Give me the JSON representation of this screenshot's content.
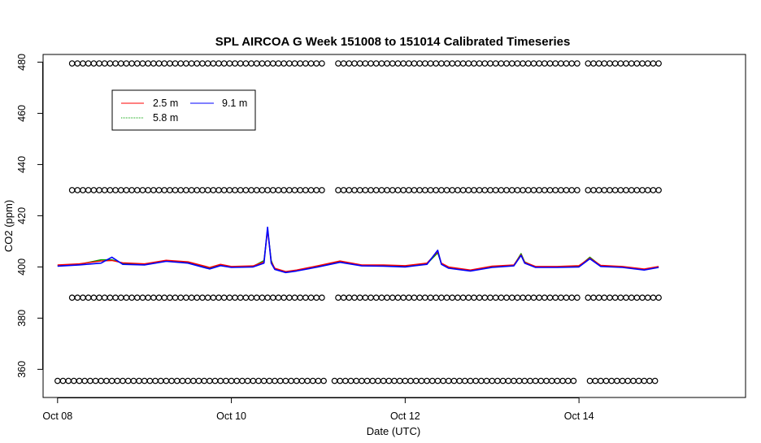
{
  "chart_data": {
    "type": "line",
    "title": "SPL AIRCOA G  Week 151008 to 151014  Calibrated Timeseries",
    "xlabel": "Date (UTC)",
    "ylabel": "CO2 (ppm)",
    "x_tick_labels": [
      "Oct 08",
      "Oct 10",
      "Oct 12",
      "Oct 14"
    ],
    "x_tick_dates": [
      "2015-10-08",
      "2015-10-10",
      "2015-10-12",
      "2015-10-14"
    ],
    "xlim": [
      "2015-10-07T20:00",
      "2015-10-15T22:00"
    ],
    "y_ticks": [
      360,
      380,
      400,
      420,
      440,
      460,
      480
    ],
    "ylim": [
      349,
      483
    ],
    "grid": false,
    "legend_position": "top-left",
    "series": [
      {
        "name": "2.5 m",
        "color": "#ff0000",
        "x": [
          "2015-10-08T00:00",
          "2015-10-08T06:00",
          "2015-10-08T12:00",
          "2015-10-08T15:00",
          "2015-10-08T18:00",
          "2015-10-09T00:00",
          "2015-10-09T06:00",
          "2015-10-09T12:00",
          "2015-10-09T18:00",
          "2015-10-09T21:00",
          "2015-10-10T00:00",
          "2015-10-10T06:00",
          "2015-10-10T09:00",
          "2015-10-10T10:00",
          "2015-10-10T11:00",
          "2015-10-10T12:00",
          "2015-10-10T15:00",
          "2015-10-10T18:00",
          "2015-10-11T00:00",
          "2015-10-11T06:00",
          "2015-10-11T12:00",
          "2015-10-11T18:00",
          "2015-10-12T00:00",
          "2015-10-12T06:00",
          "2015-10-12T09:00",
          "2015-10-12T10:00",
          "2015-10-12T12:00",
          "2015-10-12T18:00",
          "2015-10-13T00:00",
          "2015-10-13T06:00",
          "2015-10-13T08:00",
          "2015-10-13T09:00",
          "2015-10-13T12:00",
          "2015-10-13T18:00",
          "2015-10-14T00:00",
          "2015-10-14T03:00",
          "2015-10-14T06:00",
          "2015-10-14T12:00",
          "2015-10-14T18:00",
          "2015-10-14T22:00"
        ],
        "values": [
          400.8,
          401.2,
          402.3,
          402.5,
          401.6,
          401.2,
          402.6,
          402.0,
          399.8,
          401.0,
          400.2,
          400.4,
          402.0,
          414.5,
          402.0,
          399.5,
          398.2,
          398.8,
          400.5,
          402.3,
          400.8,
          400.8,
          400.5,
          401.5,
          406.0,
          401.5,
          400.0,
          398.8,
          400.3,
          400.8,
          404.8,
          401.8,
          400.2,
          400.2,
          400.5,
          403.5,
          400.6,
          400.2,
          399.2,
          400.2
        ]
      },
      {
        "name": "5.8 m",
        "color": "#00a000",
        "x": [
          "2015-10-08T00:00",
          "2015-10-08T06:00",
          "2015-10-08T12:00",
          "2015-10-08T15:00",
          "2015-10-08T18:00",
          "2015-10-09T00:00",
          "2015-10-09T06:00",
          "2015-10-09T12:00",
          "2015-10-09T18:00",
          "2015-10-09T21:00",
          "2015-10-10T00:00",
          "2015-10-10T06:00",
          "2015-10-10T09:00",
          "2015-10-10T10:00",
          "2015-10-10T11:00",
          "2015-10-10T12:00",
          "2015-10-10T15:00",
          "2015-10-10T18:00",
          "2015-10-11T00:00",
          "2015-10-11T06:00",
          "2015-10-11T12:00",
          "2015-10-11T18:00",
          "2015-10-12T00:00",
          "2015-10-12T06:00",
          "2015-10-12T09:00",
          "2015-10-12T10:00",
          "2015-10-12T12:00",
          "2015-10-12T18:00",
          "2015-10-13T00:00",
          "2015-10-13T06:00",
          "2015-10-13T08:00",
          "2015-10-13T09:00",
          "2015-10-13T12:00",
          "2015-10-13T18:00",
          "2015-10-14T00:00",
          "2015-10-14T03:00",
          "2015-10-14T06:00",
          "2015-10-14T12:00",
          "2015-10-14T18:00",
          "2015-10-14T22:00"
        ],
        "values": [
          400.5,
          401.0,
          402.8,
          402.8,
          401.4,
          401.0,
          402.4,
          401.8,
          399.5,
          400.8,
          400.0,
          400.2,
          402.5,
          414.8,
          402.5,
          399.2,
          398.0,
          398.6,
          400.3,
          402.0,
          400.6,
          400.5,
          400.3,
          401.2,
          405.5,
          401.2,
          399.8,
          398.6,
          400.0,
          400.6,
          405.2,
          402.0,
          400.0,
          400.0,
          400.2,
          403.8,
          400.4,
          400.0,
          399.0,
          400.0
        ]
      },
      {
        "name": "9.1 m",
        "color": "#0000ff",
        "x": [
          "2015-10-08T00:00",
          "2015-10-08T06:00",
          "2015-10-08T12:00",
          "2015-10-08T15:00",
          "2015-10-08T18:00",
          "2015-10-09T00:00",
          "2015-10-09T06:00",
          "2015-10-09T12:00",
          "2015-10-09T18:00",
          "2015-10-09T21:00",
          "2015-10-10T00:00",
          "2015-10-10T06:00",
          "2015-10-10T09:00",
          "2015-10-10T10:00",
          "2015-10-10T11:00",
          "2015-10-10T12:00",
          "2015-10-10T15:00",
          "2015-10-10T18:00",
          "2015-10-11T00:00",
          "2015-10-11T06:00",
          "2015-10-11T12:00",
          "2015-10-11T18:00",
          "2015-10-12T00:00",
          "2015-10-12T06:00",
          "2015-10-12T09:00",
          "2015-10-12T10:00",
          "2015-10-12T12:00",
          "2015-10-12T18:00",
          "2015-10-13T00:00",
          "2015-10-13T06:00",
          "2015-10-13T08:00",
          "2015-10-13T09:00",
          "2015-10-13T12:00",
          "2015-10-13T18:00",
          "2015-10-14T00:00",
          "2015-10-14T03:00",
          "2015-10-14T06:00",
          "2015-10-14T12:00",
          "2015-10-14T18:00",
          "2015-10-14T22:00"
        ],
        "values": [
          400.3,
          400.8,
          401.5,
          403.8,
          401.0,
          400.8,
          402.2,
          401.5,
          399.2,
          400.5,
          399.8,
          400.0,
          401.5,
          415.5,
          401.5,
          399.0,
          397.8,
          398.4,
          400.0,
          401.8,
          400.4,
          400.3,
          400.0,
          401.0,
          406.5,
          401.0,
          399.5,
          398.4,
          399.8,
          400.4,
          404.5,
          401.5,
          399.8,
          399.8,
          400.0,
          403.2,
          400.2,
          399.8,
          398.8,
          399.8
        ]
      }
    ],
    "flag_rows": [
      {
        "value": 479.5,
        "start": "2015-10-08T04:00",
        "end": "2015-10-14T22:00",
        "gaps": [
          [
            "2015-10-11T02:00",
            "2015-10-11T04:00"
          ],
          [
            "2015-10-14T00:00",
            "2015-10-14T01:30"
          ]
        ]
      },
      {
        "value": 430.0,
        "start": "2015-10-08T04:00",
        "end": "2015-10-14T22:00",
        "gaps": [
          [
            "2015-10-11T02:00",
            "2015-10-11T04:00"
          ],
          [
            "2015-10-14T00:00",
            "2015-10-14T01:30"
          ]
        ]
      },
      {
        "value": 388.0,
        "start": "2015-10-08T04:00",
        "end": "2015-10-14T22:00",
        "gaps": [
          [
            "2015-10-11T02:00",
            "2015-10-11T04:00"
          ],
          [
            "2015-10-14T00:00",
            "2015-10-14T01:30"
          ]
        ]
      },
      {
        "value": 355.5,
        "start": "2015-10-08T00:00",
        "end": "2015-10-14T22:00",
        "gaps": [
          [
            "2015-10-11T02:00",
            "2015-10-11T04:00"
          ],
          [
            "2015-10-14T00:00",
            "2015-10-14T01:30"
          ]
        ]
      }
    ]
  }
}
